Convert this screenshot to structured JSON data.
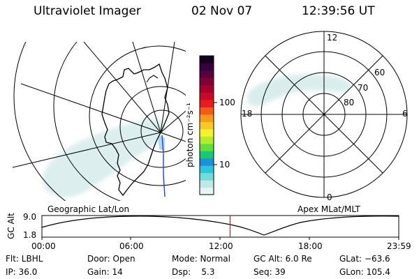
{
  "header": {
    "instrument": "Ultraviolet Imager",
    "date": "02 Nov 07",
    "time": "12:39:56 UT"
  },
  "colorbar": {
    "label": "photon cm⁻²s⁻¹",
    "ticks": [
      "100",
      "10"
    ],
    "colors": [
      "#e8f4f4",
      "#bfe8e8",
      "#72dcd8",
      "#2bc6dc",
      "#1b8fe0",
      "#18c878",
      "#62e03a",
      "#b4ec2c",
      "#f6f22c",
      "#f8c828",
      "#f89a1c",
      "#f45a18",
      "#e81c1c",
      "#c80c28",
      "#a8002c",
      "#800038",
      "#580040",
      "#36003e",
      "#140020"
    ]
  },
  "polar_plot": {
    "mlt_labels": [
      "12",
      "18",
      "6",
      "0"
    ],
    "lat_labels": [
      "60",
      "70",
      "80"
    ]
  },
  "map_labels": {
    "left": "Geographic Lat/Lon",
    "right": "Apex MLat/MLT"
  },
  "gc_alt_chart": {
    "ylabel": "GC Alt",
    "ytick_labels": [
      "9.0",
      "1.8"
    ],
    "xtick_labels": [
      "00:00",
      "06:00",
      "12:00",
      "18:00",
      "23:59"
    ],
    "current_time_marker": "12:39",
    "marker_color": "#cc2222"
  },
  "status": {
    "row1": {
      "flt": "Flt: LBHL",
      "door": "Door: Open",
      "mode": "Mode: Normal",
      "gc_alt": "GC Alt: 6.0 Re",
      "glat": "GLat: −63.6"
    },
    "row2": {
      "ip": "IP: 36.0",
      "gain": "Gain: 14",
      "dsp": "Dsp:    5.3",
      "seq": "Seq: 39",
      "glon": "GLon: 105.4"
    }
  }
}
